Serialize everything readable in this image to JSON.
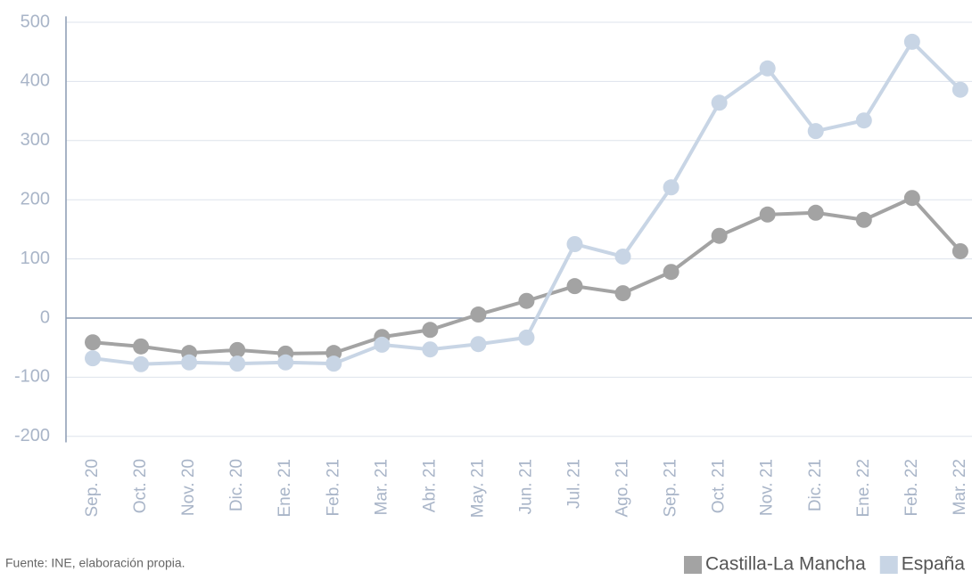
{
  "chart_data": {
    "type": "line",
    "categories": [
      "Sep. 20",
      "Oct. 20",
      "Nov. 20",
      "Dic. 20",
      "Ene. 21",
      "Feb. 21",
      "Mar. 21",
      "Abr. 21",
      "May. 21",
      "Jun. 21",
      "Jul. 21",
      "Ago. 21",
      "Sep. 21",
      "Oct. 21",
      "Nov. 21",
      "Dic. 21",
      "Ene. 22",
      "Feb. 22",
      "Mar. 22"
    ],
    "series": [
      {
        "name": "Castilla-La Mancha",
        "color": "#a3a3a3",
        "values": [
          -41,
          -48,
          -59,
          -54,
          -60,
          -59,
          -32,
          -20,
          6,
          29,
          54,
          42,
          78,
          139,
          175,
          178,
          166,
          203,
          113
        ]
      },
      {
        "name": "España",
        "color": "#c8d5e5",
        "values": [
          -68,
          -78,
          -75,
          -77,
          -75,
          -77,
          -45,
          -53,
          -44,
          -33,
          125,
          104,
          221,
          364,
          422,
          316,
          334,
          467,
          386
        ]
      }
    ],
    "ylim": [
      -210,
      510
    ],
    "yticks": [
      -200,
      -100,
      0,
      100,
      200,
      300,
      400,
      500
    ],
    "grid": true,
    "source": "Fuente: INE, elaboración propia.",
    "legend": "bottom-right"
  }
}
